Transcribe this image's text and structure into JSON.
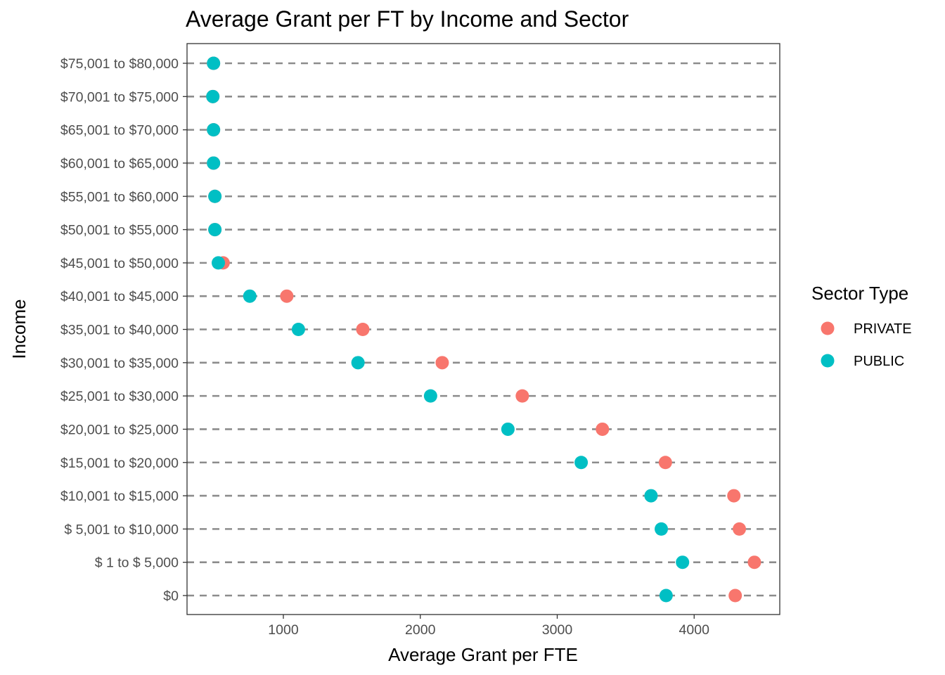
{
  "chart_data": {
    "type": "scatter",
    "title": "Average Grant per FT by Income and Sector",
    "xlabel": "Average Grant per FTE",
    "ylabel": "Income",
    "xlim": [
      280,
      4600
    ],
    "x_ticks": [
      1000,
      2000,
      3000,
      4000
    ],
    "grid": false,
    "guide_lines": "dashed horizontal line per income category",
    "legend_title": "Sector Type",
    "legend_position": "right",
    "categories": [
      "$0",
      "$     1 to $ 5,000",
      "$ 5,001 to $10,000",
      "$10,001 to $15,000",
      "$15,001 to $20,000",
      "$20,001 to $25,000",
      "$25,001 to $30,000",
      "$30,001 to $35,000",
      "$35,001 to $40,000",
      "$40,001 to $45,000",
      "$45,001 to $50,000",
      "$50,001 to $55,000",
      "$55,001 to $60,000",
      "$60,001 to $65,000",
      "$65,001 to $70,000",
      "$70,001 to $75,000",
      "$75,001 to $80,000"
    ],
    "series": [
      {
        "name": "PRIVATE",
        "color": "#F8766D",
        "values": [
          4300,
          4440,
          4330,
          4290,
          3790,
          3330,
          2745,
          2160,
          1580,
          1025,
          560,
          500,
          500,
          490,
          490,
          485,
          490
        ]
      },
      {
        "name": "PUBLIC",
        "color": "#00BFC4",
        "values": [
          3795,
          3915,
          3760,
          3685,
          3175,
          2640,
          2075,
          1545,
          1110,
          755,
          525,
          500,
          500,
          490,
          490,
          485,
          490
        ]
      }
    ]
  }
}
